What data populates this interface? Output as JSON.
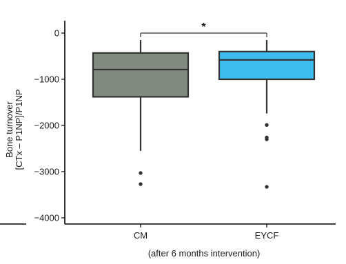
{
  "chart_data": {
    "type": "box",
    "ylabel_line1": "Bone turnover",
    "ylabel_line2": "[CTx – P1NP]/P1NP",
    "xlabel": "(after 6 months intervention)",
    "ylim": [
      -4200,
      350
    ],
    "yticks": [
      0,
      -1000,
      -2000,
      -3000,
      -4000
    ],
    "ytick_labels": [
      "0",
      "−1000",
      "−2000",
      "−3000",
      "−4000"
    ],
    "categories": [
      "CM",
      "EYCF"
    ],
    "boxes": [
      {
        "name": "CM",
        "color": "#818A7F",
        "whisker_high": -150,
        "q3": -430,
        "median": -790,
        "q1": -1380,
        "whisker_low": -2550,
        "outliers": [
          -3030,
          -3270
        ]
      },
      {
        "name": "EYCF",
        "color": "#3DBDED",
        "whisker_high": -150,
        "q3": -400,
        "median": -580,
        "q1": -1000,
        "whisker_low": -1740,
        "outliers": [
          -1990,
          -2260,
          -2300,
          -3330
        ]
      }
    ],
    "significance": {
      "from": "CM",
      "to": "EYCF",
      "label": "*"
    },
    "grid": false,
    "legend": "none"
  }
}
